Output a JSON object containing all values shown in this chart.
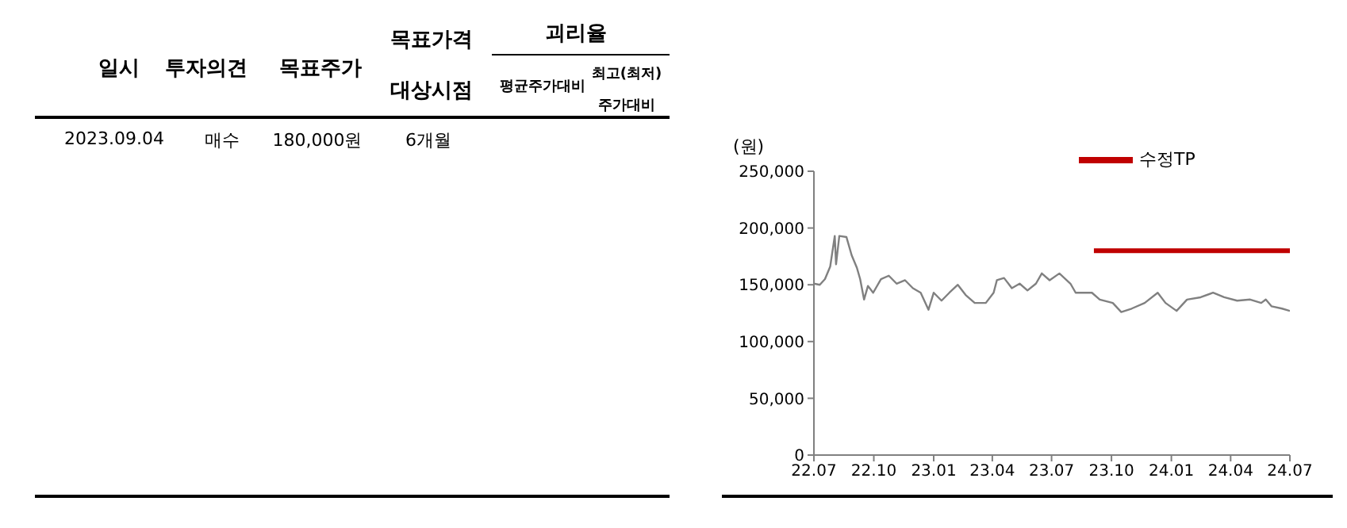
{
  "chart_data": [
    {
      "type": "other",
      "annotations": [
        "일시",
        "투자의견",
        "목표주가",
        "목표가격",
        "대상시점",
        "괴리율",
        "평균주가대비",
        "최고(최저)",
        "주가대비",
        "2023.09.04",
        "매수",
        "180,000원",
        "6개월"
      ]
    },
    {
      "type": "line",
      "ylabel": "(원)",
      "legend": "top",
      "marker": "none",
      "line_style": "solid",
      "xlim": [
        "2022-07",
        "2024-07"
      ],
      "xticks": [
        {
          "value": "2022-07",
          "label": "22.07"
        },
        {
          "value": "2022-10",
          "label": "22.10"
        },
        {
          "value": "2023-01",
          "label": "23.01"
        },
        {
          "value": "2023-04",
          "label": "23.04"
        },
        {
          "value": "2023-07",
          "label": "23.07"
        },
        {
          "value": "2023-10",
          "label": "23.10"
        },
        {
          "value": "2024-01",
          "label": "24.01"
        },
        {
          "value": "2024-04",
          "label": "24.04"
        },
        {
          "value": "2024-07",
          "label": "24.07"
        }
      ],
      "ylim": [
        0,
        250000
      ],
      "yticks": [
        {
          "value": 0,
          "label": "0"
        },
        {
          "value": 50000,
          "label": "50,000"
        },
        {
          "value": 100000,
          "label": "100,000"
        },
        {
          "value": 150000,
          "label": "150,000"
        },
        {
          "value": 200000,
          "label": "200,000"
        },
        {
          "value": 250000,
          "label": "250,000"
        }
      ],
      "series": [
        {
          "color": "#808080",
          "x": [
            "2022-07-01",
            "2022-07-10",
            "2022-07-18",
            "2022-07-26",
            "2022-08-02",
            "2022-08-04",
            "2022-08-09",
            "2022-08-20",
            "2022-08-28",
            "2022-09-05",
            "2022-09-10",
            "2022-09-16",
            "2022-09-22",
            "2022-09-30",
            "2022-10-12",
            "2022-10-24",
            "2022-11-05",
            "2022-11-18",
            "2022-11-30",
            "2022-12-12",
            "2022-12-24",
            "2023-01-01",
            "2023-01-13",
            "2023-01-25",
            "2023-02-07",
            "2023-02-19",
            "2023-03-05",
            "2023-03-22",
            "2023-04-03",
            "2023-04-08",
            "2023-04-19",
            "2023-05-01",
            "2023-05-13",
            "2023-05-25",
            "2023-06-07",
            "2023-06-16",
            "2023-06-28",
            "2023-07-13",
            "2023-07-30",
            "2023-08-07",
            "2023-09-01",
            "2023-09-13",
            "2023-10-03",
            "2023-10-16",
            "2023-11-01",
            "2023-11-21",
            "2023-12-11",
            "2023-12-23",
            "2024-01-09",
            "2024-01-25",
            "2024-02-15",
            "2024-03-05",
            "2024-03-22",
            "2024-04-11",
            "2024-05-01",
            "2024-05-18",
            "2024-05-25",
            "2024-06-03",
            "2024-06-19",
            "2024-07-01"
          ],
          "values": [
            151000,
            150000,
            155000,
            166000,
            193000,
            168000,
            193000,
            192000,
            176000,
            165000,
            155000,
            137000,
            149000,
            143000,
            155000,
            158000,
            151000,
            154000,
            147000,
            143000,
            128000,
            143000,
            136000,
            143000,
            150000,
            141000,
            134000,
            134000,
            143000,
            154000,
            156000,
            147000,
            151000,
            145000,
            151000,
            160000,
            154000,
            160000,
            151000,
            143000,
            143000,
            137000,
            134000,
            126000,
            129000,
            134000,
            143000,
            134000,
            127000,
            137000,
            139000,
            143000,
            139000,
            136000,
            137000,
            134000,
            137000,
            131000,
            129000,
            127000
          ]
        },
        {
          "name": "수정TP",
          "color": "#c00000",
          "x": [
            "2023-09-04",
            "2024-07-01"
          ],
          "values": [
            180000,
            180000
          ]
        }
      ]
    }
  ]
}
